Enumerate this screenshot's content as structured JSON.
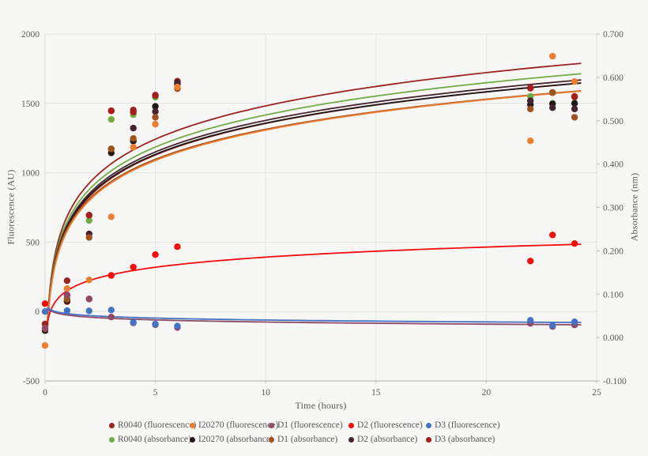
{
  "chart_data": {
    "type": "scatter",
    "title": "",
    "xlabel": "Time (hours)",
    "ylabel_left": "Fluorescence (AU)",
    "ylabel_right": "Absorbance (nm)",
    "xlim": [
      0,
      25
    ],
    "x_ticks": [
      0,
      5,
      10,
      15,
      20,
      25
    ],
    "y_left_lim": [
      -500,
      2000
    ],
    "y_left_ticks": [
      2000,
      1500,
      1000,
      500,
      0,
      -500
    ],
    "y_right_lim": [
      -0.1,
      0.7
    ],
    "y_right_ticks": [
      0.7,
      0.6,
      0.5,
      0.4,
      0.3,
      0.2,
      0.1,
      0.0,
      -0.1
    ],
    "grid": true,
    "legend_position": "bottom",
    "trend_model": "value = a + b * ln(t), log trendline fitted per series",
    "series": [
      {
        "name": "R0040 (fluorescence)",
        "axis": "left",
        "color": "#9b2423",
        "points": [
          [
            0,
            -90
          ],
          [
            1,
            222
          ],
          [
            2,
            695
          ],
          [
            3,
            1446
          ],
          [
            4,
            1452
          ],
          [
            5,
            1560
          ],
          [
            6,
            1660
          ],
          [
            22,
            1612
          ],
          [
            23,
            1578
          ],
          [
            24,
            1550
          ]
        ],
        "trend": {
          "a": 685,
          "b": 346
        }
      },
      {
        "name": "I20270 (fluorescence)",
        "axis": "left",
        "color": "#ed7d31",
        "points": [
          [
            0,
            -245
          ],
          [
            1,
            165
          ],
          [
            2,
            228
          ],
          [
            3,
            683
          ],
          [
            4,
            1184
          ],
          [
            5,
            1350
          ],
          [
            6,
            1618
          ],
          [
            22,
            1230
          ],
          [
            23,
            1840
          ],
          [
            24,
            1657
          ]
        ],
        "trend": {
          "a": 580,
          "b": 316
        }
      },
      {
        "name": "D1 (fluorescence)",
        "axis": "left",
        "color": "#8f4a66",
        "points": [
          [
            0,
            -120
          ],
          [
            1,
            120
          ],
          [
            2,
            90
          ],
          [
            3,
            -40
          ],
          [
            4,
            -82
          ],
          [
            5,
            -95
          ],
          [
            6,
            -115
          ],
          [
            22,
            -85
          ],
          [
            23,
            -108
          ],
          [
            24,
            -97
          ]
        ],
        "trend": {
          "a": -25,
          "b": -22
        }
      },
      {
        "name": "D2 (fluorescence)",
        "axis": "left",
        "color": "#f50c0c",
        "points": [
          [
            0,
            57
          ],
          [
            2,
            91
          ],
          [
            3,
            260
          ],
          [
            4,
            320
          ],
          [
            5,
            410
          ],
          [
            6,
            467
          ],
          [
            22,
            364
          ],
          [
            23,
            552
          ],
          [
            24,
            490
          ]
        ],
        "trend": {
          "a": 150,
          "b": 105
        }
      },
      {
        "name": "D3 (fluorescence)",
        "axis": "left",
        "color": "#4472c4",
        "points": [
          [
            0,
            0
          ],
          [
            1,
            6
          ],
          [
            2,
            5
          ],
          [
            3,
            11
          ],
          [
            4,
            -78
          ],
          [
            5,
            -90
          ],
          [
            6,
            -105
          ],
          [
            22,
            -63
          ],
          [
            23,
            -100
          ],
          [
            24,
            -74
          ]
        ],
        "trend": {
          "a": -15,
          "b": -20
        }
      },
      {
        "name": "R0040 (absorbance)",
        "axis": "right",
        "color": "#70ad47",
        "points": [
          [
            1,
            0.09
          ],
          [
            2,
            0.27
          ],
          [
            3,
            0.503
          ],
          [
            4,
            0.514
          ],
          [
            5,
            0.554
          ],
          [
            6,
            0.585
          ],
          [
            22,
            0.556
          ],
          [
            23,
            0.54
          ],
          [
            24,
            0.541
          ]
        ],
        "trend": {
          "a": 0.267,
          "b": 0.107
        }
      },
      {
        "name": "I20270 (absorbance)",
        "axis": "right",
        "color": "#1f1a17",
        "points": [
          [
            0,
            0.016
          ],
          [
            1,
            0.085
          ],
          [
            3,
            0.426
          ],
          [
            4,
            0.453
          ],
          [
            5,
            0.533
          ],
          [
            6,
            0.585
          ],
          [
            22,
            0.537
          ],
          [
            23,
            0.539
          ],
          [
            24,
            0.54
          ]
        ],
        "trend": {
          "a": 0.255,
          "b": 0.104
        }
      },
      {
        "name": "D1 (absorbance)",
        "axis": "right",
        "color": "#a0521d",
        "points": [
          [
            0,
            0.02
          ],
          [
            1,
            0.088
          ],
          [
            2,
            0.231
          ],
          [
            3,
            0.435
          ],
          [
            4,
            0.459
          ],
          [
            5,
            0.508
          ],
          [
            6,
            0.574
          ],
          [
            22,
            0.527
          ],
          [
            23,
            0.565
          ],
          [
            24,
            0.508
          ]
        ],
        "trend": {
          "a": 0.25,
          "b": 0.1
        }
      },
      {
        "name": "D2 (absorbance)",
        "axis": "right",
        "color": "#46242f",
        "points": [
          [
            1,
            0.098
          ],
          [
            2,
            0.239
          ],
          [
            3,
            0.435
          ],
          [
            4,
            0.483
          ],
          [
            5,
            0.521
          ],
          [
            6,
            0.588
          ],
          [
            22,
            0.546
          ],
          [
            23,
            0.53
          ],
          [
            24,
            0.527
          ]
        ],
        "trend": {
          "a": 0.259,
          "b": 0.105
        }
      },
      {
        "name": "D3 (absorbance)",
        "axis": "right",
        "color": "#a81d1d",
        "points": [
          [
            1,
            0.083
          ],
          [
            2,
            0.282
          ],
          [
            3,
            0.523
          ],
          [
            4,
            0.52
          ],
          [
            5,
            0.558
          ],
          [
            6,
            0.574
          ],
          [
            22,
            0.575
          ],
          [
            23,
            0.565
          ],
          [
            24,
            0.555
          ]
        ],
        "trend": {
          "a": 0.252,
          "b": 0.105
        }
      }
    ],
    "legend_order": [
      0,
      1,
      2,
      3,
      4,
      5,
      6,
      7,
      8,
      9
    ]
  },
  "style": {
    "background": "#f7f7f5",
    "gridline_color": "#e4e4e2",
    "axis_line_color": "#bdbdbb",
    "edge_line_color": "#d9d9d7",
    "tick_text_color": "#595959",
    "marker_radius": 4.2,
    "curve_width": 1.8
  }
}
